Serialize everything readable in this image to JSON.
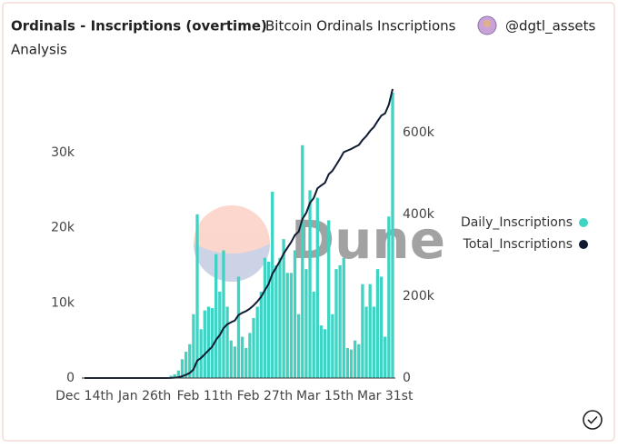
{
  "chart_data": {
    "type": "bar_line",
    "title": "Ordinals - Inscriptions (overtime)",
    "subtitle": "Bitcoin Ordinals Inscriptions",
    "author": "@dgtl_assets",
    "category": "Analysis",
    "watermark": "Dune",
    "categories": [
      "Dec 14th",
      null,
      null,
      null,
      null,
      null,
      null,
      null,
      null,
      null,
      null,
      null,
      null,
      null,
      null,
      null,
      "Jan 26th",
      null,
      null,
      null,
      null,
      null,
      null,
      null,
      null,
      null,
      null,
      null,
      null,
      null,
      null,
      null,
      "Feb 11th",
      null,
      null,
      null,
      null,
      null,
      null,
      null,
      null,
      null,
      null,
      null,
      null,
      null,
      null,
      null,
      "Feb 27th",
      null,
      null,
      null,
      null,
      null,
      null,
      null,
      null,
      null,
      null,
      null,
      null,
      null,
      null,
      null,
      "Mar 15th",
      null,
      null,
      null,
      null,
      null,
      null,
      null,
      null,
      null,
      null,
      null,
      null,
      null,
      null,
      null,
      "Mar 31st",
      null,
      null
    ],
    "series": [
      {
        "name": "Daily_Inscriptions",
        "color": "#3fd3c3",
        "axis": "y",
        "kind": "bar",
        "values": [
          0,
          0,
          0,
          0,
          0,
          0,
          0,
          0,
          0,
          0,
          0,
          0,
          0,
          0,
          0,
          0,
          0,
          0,
          0,
          0,
          0,
          0,
          0,
          300,
          500,
          1000,
          2500,
          3500,
          4500,
          8500,
          21800,
          6500,
          9000,
          9500,
          9300,
          16500,
          11500,
          17000,
          9500,
          5000,
          4200,
          13500,
          5500,
          4000,
          6000,
          8000,
          9500,
          11500,
          16000,
          15500,
          24800,
          15000,
          16000,
          18500,
          14000,
          14000,
          17000,
          8500,
          31000,
          14500,
          25000,
          11500,
          24000,
          7000,
          6500,
          21000,
          8500,
          14500,
          15000,
          16000,
          4000,
          3800,
          5000,
          4500,
          12500,
          9500,
          12500,
          9500,
          14500,
          13500,
          5500,
          21500,
          38000
        ]
      },
      {
        "name": "Total_Inscriptions",
        "color": "#0e1b33",
        "axis": "y2",
        "kind": "line",
        "values": [
          0,
          0,
          0,
          0,
          0,
          0,
          0,
          0,
          0,
          0,
          0,
          0,
          0,
          0,
          0,
          0,
          0,
          0,
          0,
          0,
          0,
          0,
          0,
          300,
          800,
          1800,
          4300,
          7800,
          12300,
          20800,
          42600,
          49100,
          58100,
          67600,
          76900,
          93400,
          104900,
          121900,
          131400,
          136400,
          140600,
          154100,
          159600,
          163600,
          169600,
          177600,
          187100,
          198600,
          214600,
          230100,
          254900,
          269900,
          285900,
          304400,
          318400,
          332400,
          349400,
          357900,
          388900,
          403400,
          428400,
          439900,
          463900,
          470900,
          477400,
          498400,
          506900,
          521400,
          536400,
          552400,
          556400,
          560200,
          565200,
          569700,
          582200,
          591700,
          604200,
          613700,
          628200,
          641700,
          647200,
          668700,
          706700
        ]
      }
    ],
    "ylim": [
      0,
      39200
    ],
    "yticks": [
      0,
      {
        "value": 10000,
        "label": "10k"
      },
      {
        "value": 20000,
        "label": "20k"
      },
      {
        "value": 30000,
        "label": "30k"
      }
    ],
    "y2lim": [
      0,
      720000
    ],
    "y2ticks": [
      0,
      {
        "value": 200000,
        "label": "200k"
      },
      {
        "value": 400000,
        "label": "400k"
      },
      {
        "value": 600000,
        "label": "600k"
      }
    ],
    "grid": false,
    "legend": "right"
  }
}
